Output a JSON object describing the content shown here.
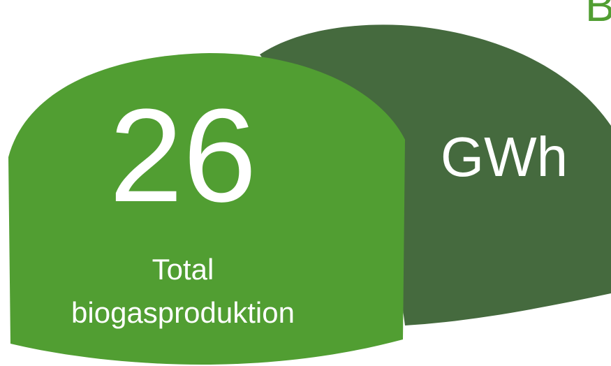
{
  "value": "26",
  "unit": "GWh",
  "label_line1": "Total",
  "label_line2": "biogasproduktion",
  "corner_letter": "B"
}
